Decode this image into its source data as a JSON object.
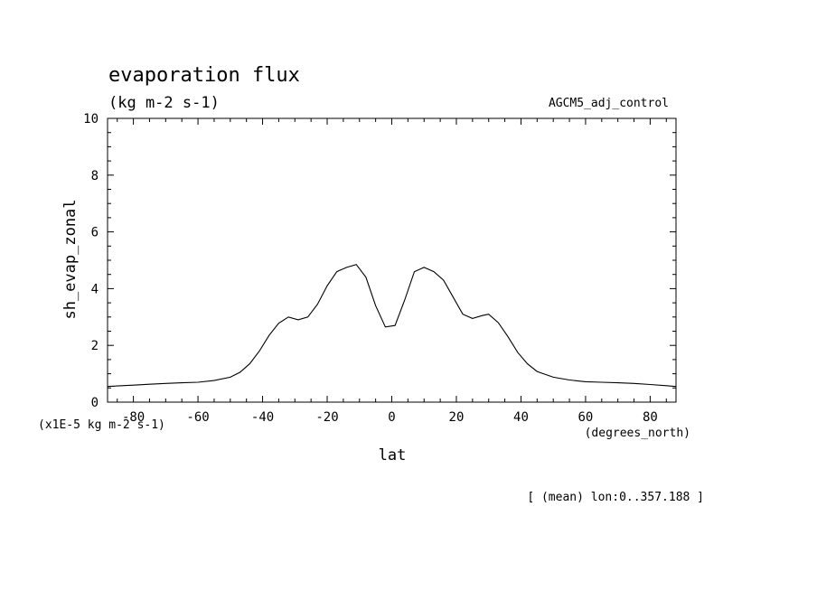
{
  "chart_data": {
    "type": "line",
    "title": "evaporation flux",
    "subtitle": "(kg m-2 s-1)",
    "dataset_label": "AGCM5_adj_control",
    "ylabel": "sh_evap_zonal",
    "yunits": "(x1E-5 kg m-2 s-1)",
    "xlabel": "lat",
    "xunits": "(degrees_north)",
    "footnote": "[ (mean) lon:0..357.188 ]",
    "xlim": [
      -88,
      88
    ],
    "ylim": [
      0,
      10
    ],
    "xticks": [
      -80,
      -60,
      -40,
      -20,
      0,
      20,
      40,
      60,
      80
    ],
    "yticks": [
      0,
      2,
      4,
      6,
      8,
      10
    ],
    "grid": false,
    "series": [
      {
        "x": [
          -88,
          -85,
          -80,
          -75,
          -70,
          -65,
          -60,
          -55,
          -50,
          -47,
          -44,
          -41,
          -38,
          -35,
          -32,
          -29,
          -26,
          -23,
          -20,
          -17,
          -14,
          -11,
          -8,
          -5,
          -2,
          1,
          4,
          7,
          10,
          13,
          16,
          19,
          22,
          25,
          28,
          30,
          33,
          36,
          39,
          42,
          45,
          50,
          55,
          60,
          65,
          70,
          75,
          80,
          85,
          88
        ],
        "y": [
          0.55,
          0.57,
          0.6,
          0.63,
          0.66,
          0.68,
          0.7,
          0.76,
          0.88,
          1.05,
          1.35,
          1.8,
          2.35,
          2.78,
          3.0,
          2.9,
          3.0,
          3.45,
          4.1,
          4.6,
          4.75,
          4.85,
          4.4,
          3.4,
          2.65,
          2.7,
          3.6,
          4.6,
          4.75,
          4.6,
          4.3,
          3.7,
          3.1,
          2.95,
          3.05,
          3.1,
          2.8,
          2.3,
          1.75,
          1.35,
          1.08,
          0.88,
          0.78,
          0.72,
          0.7,
          0.68,
          0.66,
          0.62,
          0.58,
          0.55
        ]
      }
    ]
  }
}
